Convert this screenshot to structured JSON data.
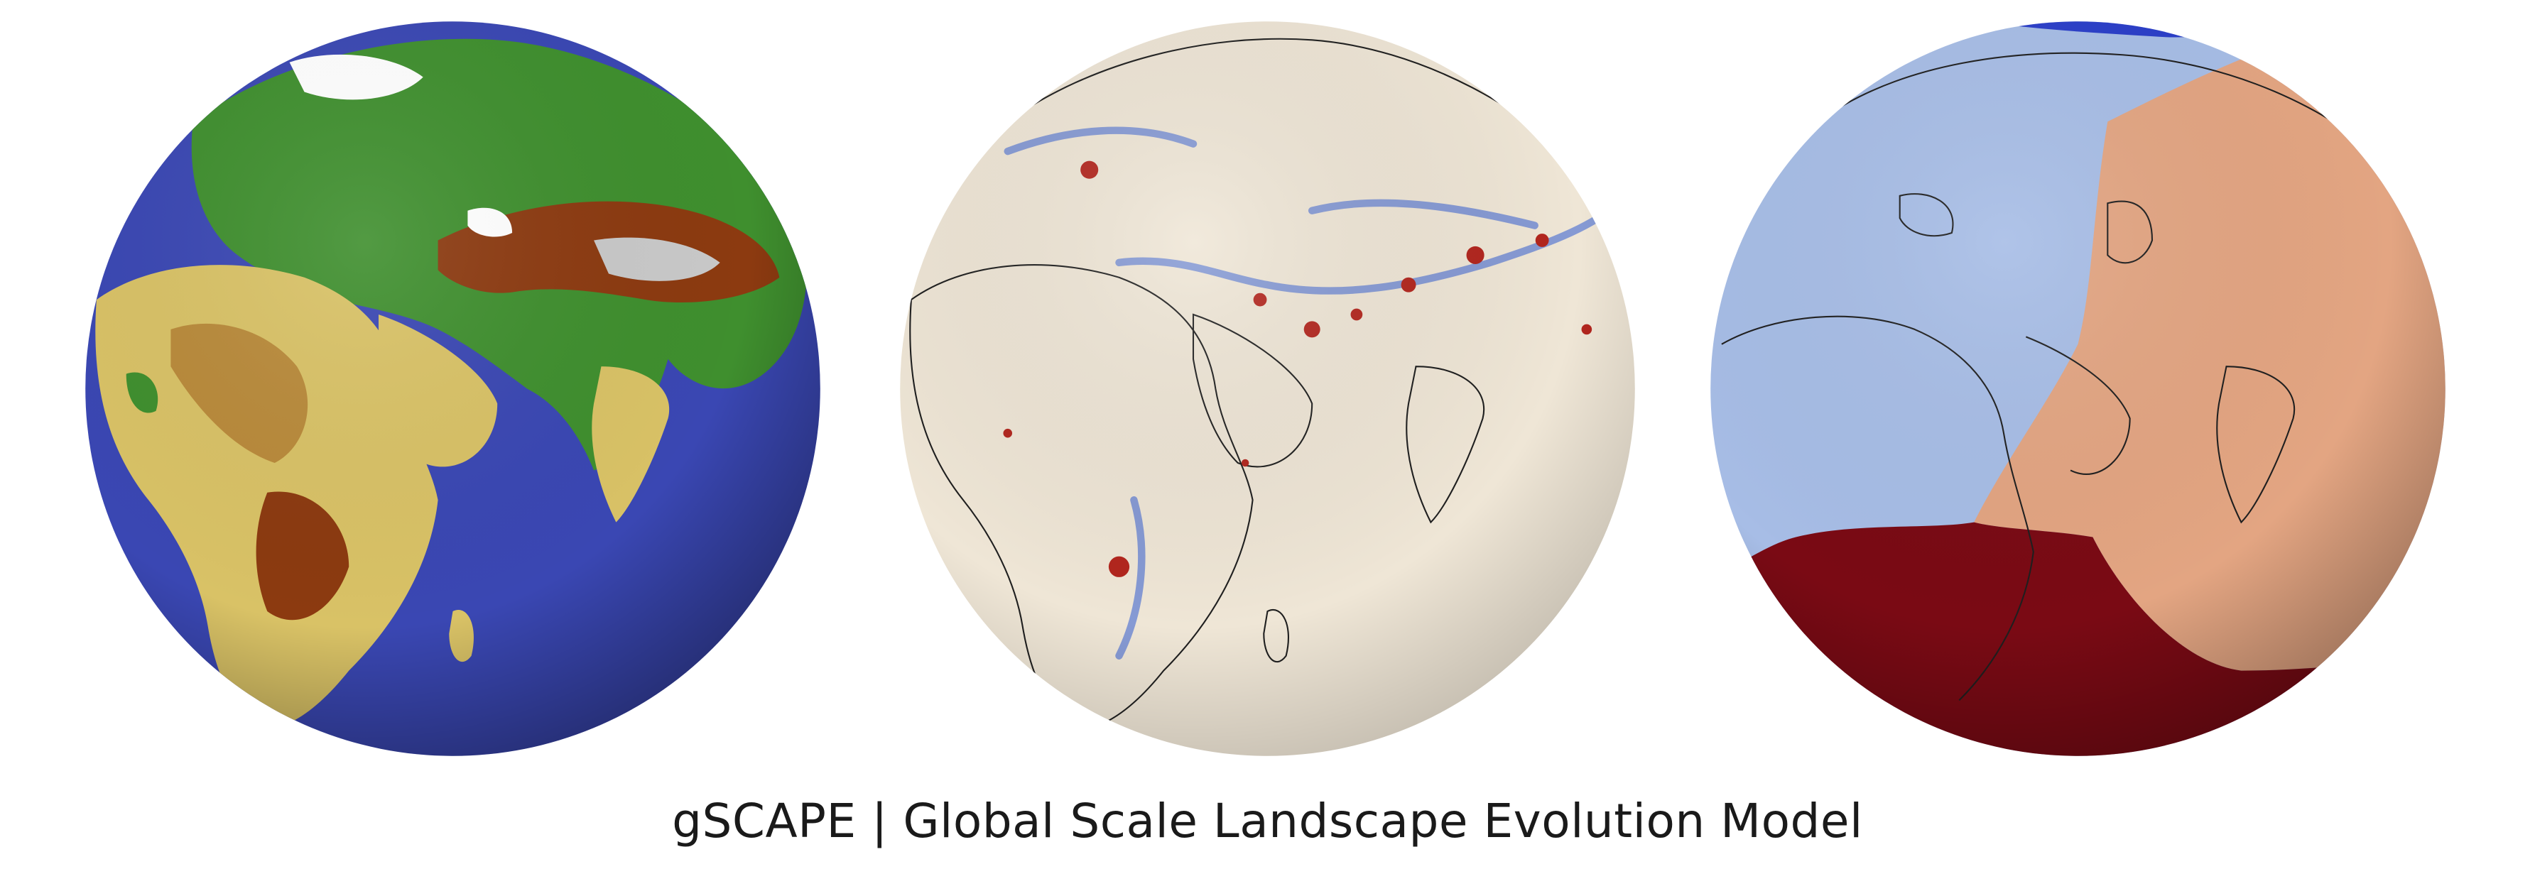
{
  "caption": "gSCAPE | Global Scale Landscape Evolution Model",
  "globes": [
    {
      "name": "elevation-globe",
      "ocean_color": "#3a47b3",
      "land_colors": [
        "#3f8f2e",
        "#d9c266",
        "#8c3a10",
        "#c9c9c9",
        "#ffffff"
      ]
    },
    {
      "name": "erosion-deposition-globe",
      "background_color": "#efe6d6",
      "colors": [
        "#2f5bd3",
        "#b3261e"
      ]
    },
    {
      "name": "drainage-basin-globe",
      "colors": [
        "#a7bde6",
        "#e3a582",
        "#7a0a14",
        "#2a3ec9"
      ]
    }
  ]
}
